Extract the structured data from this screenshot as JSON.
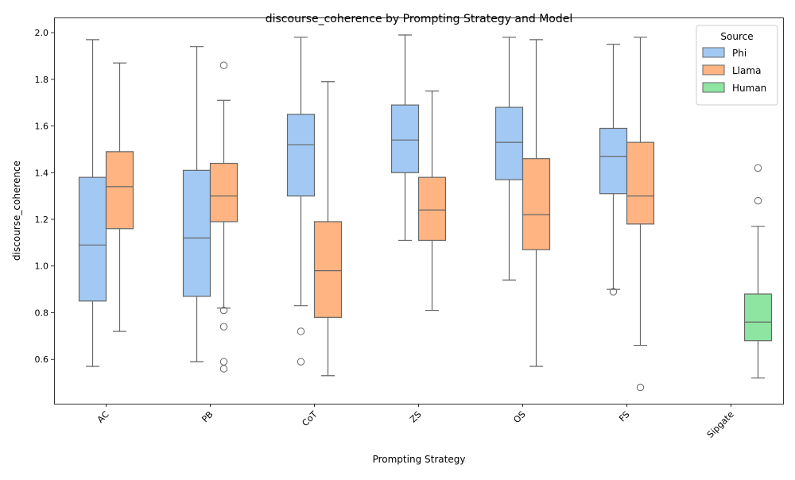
{
  "chart_data": {
    "type": "box",
    "title": "discourse_coherence by Prompting Strategy and Model",
    "xlabel": "Prompting Strategy",
    "ylabel": "discourse_coherence",
    "categories": [
      "AC",
      "PB",
      "CoT",
      "ZS",
      "OS",
      "FS",
      "Sipgate"
    ],
    "ylim": [
      0.41,
      2.065
    ],
    "yticks": [
      "0.6",
      "0.8",
      "1.0",
      "1.2",
      "1.4",
      "1.6",
      "1.8",
      "2.0"
    ],
    "grid": false,
    "legend": {
      "title": "Source",
      "placement": "top-right",
      "entries": [
        "Phi",
        "Llama",
        "Human"
      ]
    },
    "series": [
      {
        "name": "Phi",
        "color": "#a1c9f4",
        "boxes": {
          "AC": {
            "whislo": 0.57,
            "q1": 0.85,
            "med": 1.09,
            "q3": 1.38,
            "whishi": 1.97,
            "fliers": []
          },
          "PB": {
            "whislo": 0.59,
            "q1": 0.87,
            "med": 1.12,
            "q3": 1.41,
            "whishi": 1.94,
            "fliers": []
          },
          "CoT": {
            "whislo": 0.83,
            "q1": 1.3,
            "med": 1.52,
            "q3": 1.65,
            "whishi": 1.98,
            "fliers": [
              0.72,
              0.59
            ]
          },
          "ZS": {
            "whislo": 1.11,
            "q1": 1.4,
            "med": 1.54,
            "q3": 1.69,
            "whishi": 1.99,
            "fliers": []
          },
          "OS": {
            "whislo": 0.94,
            "q1": 1.37,
            "med": 1.53,
            "q3": 1.68,
            "whishi": 1.98,
            "fliers": []
          },
          "FS": {
            "whislo": 0.9,
            "q1": 1.31,
            "med": 1.47,
            "q3": 1.59,
            "whishi": 1.95,
            "fliers": [
              0.89
            ]
          }
        }
      },
      {
        "name": "Llama",
        "color": "#ffb482",
        "boxes": {
          "AC": {
            "whislo": 0.72,
            "q1": 1.16,
            "med": 1.34,
            "q3": 1.49,
            "whishi": 1.87,
            "fliers": []
          },
          "PB": {
            "whislo": 0.82,
            "q1": 1.19,
            "med": 1.3,
            "q3": 1.44,
            "whishi": 1.71,
            "fliers": [
              1.86,
              0.81,
              0.74,
              0.59,
              0.56
            ]
          },
          "CoT": {
            "whislo": 0.53,
            "q1": 0.78,
            "med": 0.98,
            "q3": 1.19,
            "whishi": 1.79,
            "fliers": []
          },
          "ZS": {
            "whislo": 0.81,
            "q1": 1.11,
            "med": 1.24,
            "q3": 1.38,
            "whishi": 1.75,
            "fliers": []
          },
          "OS": {
            "whislo": 0.57,
            "q1": 1.07,
            "med": 1.22,
            "q3": 1.46,
            "whishi": 1.97,
            "fliers": []
          },
          "FS": {
            "whislo": 0.66,
            "q1": 1.18,
            "med": 1.3,
            "q3": 1.53,
            "whishi": 1.98,
            "fliers": [
              0.48
            ]
          }
        }
      },
      {
        "name": "Human",
        "color": "#8de5a1",
        "boxes": {
          "Sipgate": {
            "whislo": 0.52,
            "q1": 0.68,
            "med": 0.76,
            "q3": 0.88,
            "whishi": 1.17,
            "fliers": [
              1.42,
              1.28
            ]
          }
        }
      }
    ]
  }
}
